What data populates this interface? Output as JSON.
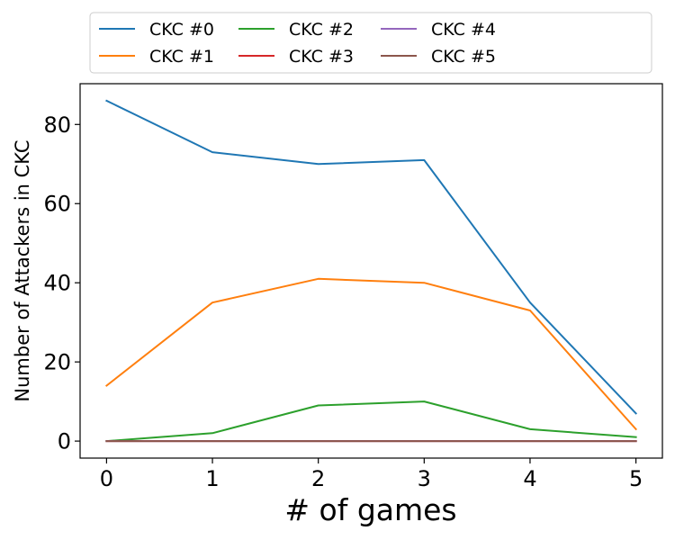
{
  "chart_data": {
    "type": "line",
    "x": [
      0,
      1,
      2,
      3,
      4,
      5
    ],
    "xlabel": "# of games",
    "ylabel": "Number of Attackers in CKC",
    "xlim": [
      -0.25,
      5.25
    ],
    "ylim": [
      -4.3,
      90.3
    ],
    "xticks": [
      0,
      1,
      2,
      3,
      4,
      5
    ],
    "yticks": [
      0,
      20,
      40,
      60,
      80
    ],
    "grid": false,
    "legend_placement": "top-center, outside plot, 4 columns",
    "series": [
      {
        "name": "CKC #0",
        "color": "#1f77b4",
        "values": [
          86,
          73,
          70,
          71,
          35,
          7
        ]
      },
      {
        "name": "CKC #1",
        "color": "#ff7f0e",
        "values": [
          14,
          35,
          41,
          40,
          33,
          3
        ]
      },
      {
        "name": "CKC #2",
        "color": "#2ca02c",
        "values": [
          0,
          2,
          9,
          10,
          3,
          1
        ]
      },
      {
        "name": "CKC #3",
        "color": "#d62728",
        "values": [
          0,
          0,
          0,
          0,
          0,
          0
        ]
      },
      {
        "name": "CKC #4",
        "color": "#9467bd",
        "values": [
          0,
          0,
          0,
          0,
          0,
          0
        ]
      },
      {
        "name": "CKC #5",
        "color": "#8c564b",
        "values": [
          0,
          0,
          0,
          0,
          0,
          0
        ]
      }
    ]
  }
}
